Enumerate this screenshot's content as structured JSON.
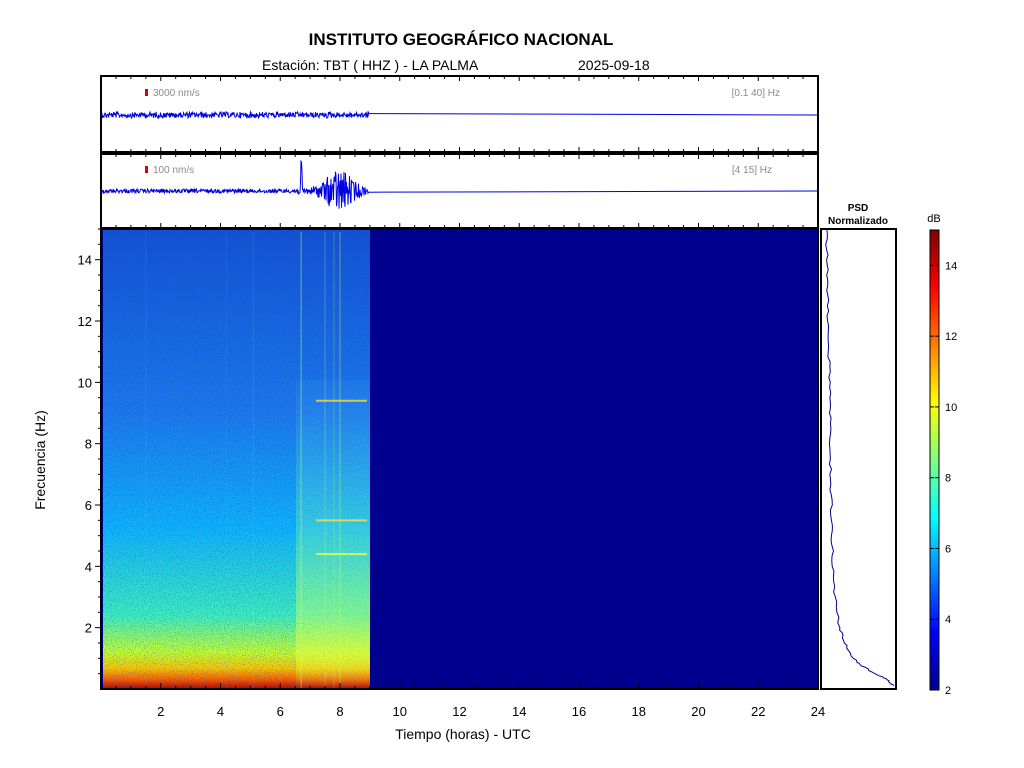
{
  "header": {
    "title": "INSTITUTO GEOGRÁFICO NACIONAL",
    "station_label": "Estación:  TBT ( HHZ ) - LA PALMA",
    "date": "2025-09-18"
  },
  "colors": {
    "trace": "#0000e6",
    "scale_marker": "#dd0000",
    "empty_spectrogram": "#00008f"
  },
  "chart_data": [
    {
      "type": "line",
      "panel": "seismogram-broadband",
      "scale_label": "3000 nm/s",
      "band_label": "[0.1 40] Hz",
      "x_range": [
        0,
        24
      ],
      "data_end_hour": 9.0
    },
    {
      "type": "line",
      "panel": "seismogram-filtered",
      "scale_label": "100 nm/s",
      "band_label": "[4 15] Hz",
      "x_range": [
        0,
        24
      ],
      "data_end_hour": 9.0,
      "events_hours": [
        6.7,
        7.5,
        7.8,
        8.0
      ]
    },
    {
      "type": "heatmap",
      "panel": "spectrogram",
      "xlabel": "Tiempo (horas) - UTC",
      "ylabel": "Frecuencia  (Hz)",
      "xlim": [
        0,
        24
      ],
      "ylim": [
        0,
        15
      ],
      "xticks": [
        "2",
        "4",
        "6",
        "8",
        "10",
        "12",
        "14",
        "16",
        "18",
        "20",
        "22",
        "24"
      ],
      "yticks": [
        "2",
        "4",
        "6",
        "8",
        "10",
        "12",
        "14"
      ],
      "data_end_hour": 9.0
    },
    {
      "type": "line",
      "panel": "psd",
      "title_line1": "PSD",
      "title_line2": "Normalizado",
      "freq_hz": [
        0.1,
        0.3,
        0.5,
        0.8,
        1.0,
        1.5,
        2,
        3,
        4,
        5,
        6,
        7,
        8,
        9,
        10,
        11,
        12,
        13,
        14,
        15
      ],
      "normalized_psd": [
        1.0,
        0.9,
        0.72,
        0.5,
        0.4,
        0.28,
        0.2,
        0.13,
        0.1,
        0.09,
        0.08,
        0.07,
        0.06,
        0.06,
        0.05,
        0.04,
        0.03,
        0.02,
        0.015,
        0.01
      ]
    },
    {
      "type": "heatmap",
      "panel": "colorbar",
      "unit": "dB",
      "range": [
        2,
        15
      ],
      "ticks": [
        "2",
        "4",
        "6",
        "8",
        "10",
        "12",
        "14"
      ]
    }
  ]
}
